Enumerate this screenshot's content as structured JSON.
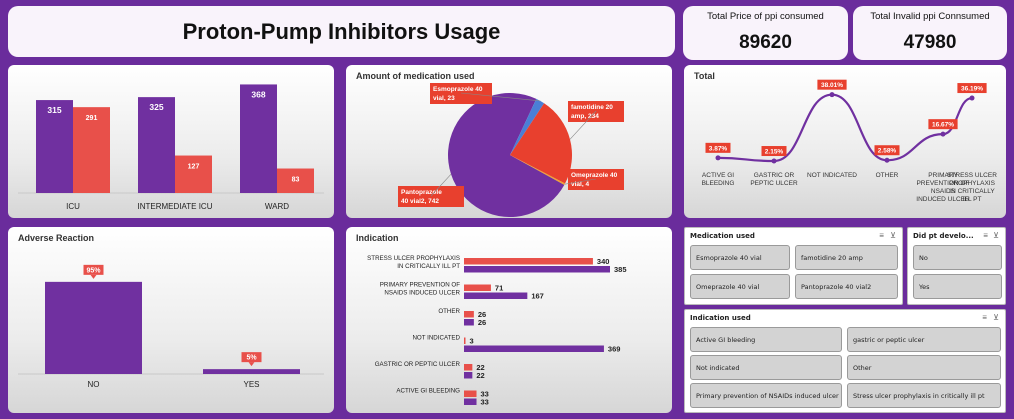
{
  "header": {
    "title": "Proton-Pump Inhibitors Usage"
  },
  "kpis": [
    {
      "label": "Total Price of ppi consumed",
      "value": "89620"
    },
    {
      "label": "Total Invalid ppi Connsumed",
      "value": "47980"
    }
  ],
  "colors": {
    "purple": "#7030a0",
    "red": "#e8504a",
    "blue": "#4a7fd6",
    "orange": "#f0a030",
    "background": "#6a2c9c"
  },
  "chart_data": [
    {
      "id": "ward-usage",
      "type": "bar",
      "title": "",
      "categories": [
        "ICU",
        "INTERMEDIATE  ICU",
        "WARD"
      ],
      "series": [
        {
          "color": "#7030a0",
          "values": [
            315,
            325,
            368
          ]
        },
        {
          "color": "#e8504a",
          "values": [
            291,
            127,
            83
          ]
        }
      ],
      "ylim": [
        0,
        400
      ]
    },
    {
      "id": "amount-used",
      "type": "pie",
      "title": "Amount of medication used",
      "slices": [
        {
          "label": "Pantoprazole 40 vial2,  742",
          "value": 742,
          "color": "#7030a0"
        },
        {
          "label": "Esmoprazole 40 vial, 23",
          "value": 23,
          "color": "#4a7fd6"
        },
        {
          "label": "famotidine 20 amp, 234",
          "value": 234,
          "color": "#e8402e"
        },
        {
          "label": "Omeprazole 40 vial, 4",
          "value": 4,
          "color": "#f0a030"
        }
      ]
    },
    {
      "id": "total-indication",
      "type": "line",
      "title": "Total",
      "categories": [
        "ACTIVE GI BLEEDING",
        "GASTRIC OR PEPTIC ULCER",
        "NOT INDICATED",
        "OTHER",
        "PRIMARY PREVENTION OF NSAIDS INDUCED ULCER",
        "STRESS ULCER PROPHYLAXIS IN CRITICALLY ILL PT"
      ],
      "values": [
        3.87,
        2.15,
        38.01,
        2.58,
        16.67,
        36.19
      ],
      "labels": [
        "3.87%",
        "2.15%",
        "38.01%",
        "2.58%",
        "16.67%",
        "36.19%"
      ],
      "ylim": [
        0,
        40
      ]
    },
    {
      "id": "adverse-reaction",
      "type": "bar",
      "title": "Adverse Reaction",
      "categories": [
        "NO",
        "YES"
      ],
      "values": [
        95,
        5
      ],
      "labels": [
        "95%",
        "5%"
      ],
      "ylim": [
        0,
        100
      ]
    },
    {
      "id": "indication",
      "type": "bar",
      "orientation": "horizontal",
      "title": "Indication",
      "categories": [
        "STRESS ULCER PROPHYLAXIS IN CRITICALLY ILL PT",
        "PRIMARY PREVENTION OF NSAIDS INDUCED ULCER",
        "OTHER",
        "NOT INDICATED",
        "GASTRIC OR PEPTIC ULCER",
        "ACTIVE GI BLEEDING"
      ],
      "series": [
        {
          "color": "#e8504a",
          "values": [
            340,
            71,
            26,
            3,
            22,
            33
          ]
        },
        {
          "color": "#7030a0",
          "values": [
            385,
            167,
            26,
            369,
            22,
            33
          ]
        }
      ],
      "xlim": [
        0,
        420
      ]
    }
  ],
  "slicers": {
    "medication": {
      "title": "Medication used",
      "items": [
        "Esmoprazole 40 vial",
        "famotidine 20 amp",
        "Omeprazole 40 vial",
        "Pantoprazole 40 vial2"
      ]
    },
    "did_pt_develop": {
      "title": "Did pt develo...",
      "items": [
        "No",
        "Yes"
      ]
    },
    "indication": {
      "title": "Indication used",
      "items": [
        "Active GI bleeding",
        "gastric or peptic ulcer",
        "Not indicated",
        "Other",
        "Primary prevention of NSAIDs induced ulcer",
        "Stress ulcer prophylaxis in critically ill pt"
      ]
    }
  },
  "icons": {
    "multiselect": "multiselect-icon",
    "clear_filter": "clear-filter-icon"
  }
}
